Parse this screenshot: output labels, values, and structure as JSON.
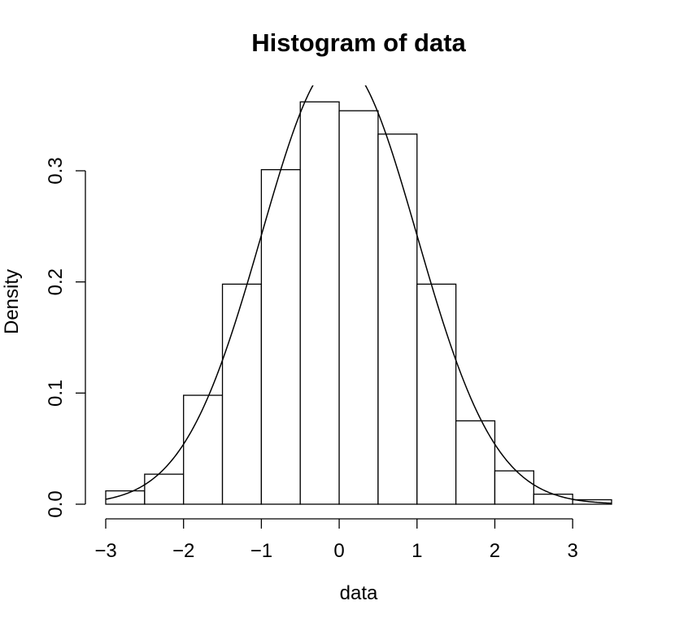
{
  "chart_data": {
    "type": "bar",
    "title": "Histogram of data",
    "xlabel": "data",
    "ylabel": "Density",
    "bins": [
      {
        "from": -3.0,
        "to": -2.5,
        "density": 0.012
      },
      {
        "from": -2.5,
        "to": -2.0,
        "density": 0.027
      },
      {
        "from": -2.0,
        "to": -1.5,
        "density": 0.098
      },
      {
        "from": -1.5,
        "to": -1.0,
        "density": 0.198
      },
      {
        "from": -1.0,
        "to": -0.5,
        "density": 0.301
      },
      {
        "from": -0.5,
        "to": 0.0,
        "density": 0.362
      },
      {
        "from": 0.0,
        "to": 0.5,
        "density": 0.354
      },
      {
        "from": 0.5,
        "to": 1.0,
        "density": 0.333
      },
      {
        "from": 1.0,
        "to": 1.5,
        "density": 0.198
      },
      {
        "from": 1.5,
        "to": 2.0,
        "density": 0.075
      },
      {
        "from": 2.0,
        "to": 2.5,
        "density": 0.03
      },
      {
        "from": 2.5,
        "to": 3.0,
        "density": 0.009
      },
      {
        "from": 3.0,
        "to": 3.5,
        "density": 0.004
      }
    ],
    "curve": {
      "type": "normal density",
      "mean": 0,
      "sd": 1
    },
    "xlim": [
      -3.0,
      3.5
    ],
    "ylim": [
      0,
      0.38
    ],
    "xticks": [
      -3,
      -2,
      -1,
      0,
      1,
      2,
      3
    ],
    "xtick_labels": [
      "−3",
      "−2",
      "−1",
      "0",
      "1",
      "2",
      "3"
    ],
    "yticks": [
      0.0,
      0.1,
      0.2,
      0.3
    ],
    "ytick_labels": [
      "0.0",
      "0.1",
      "0.2",
      "0.3"
    ],
    "grid": false,
    "legend": "none",
    "colors": {
      "bar_fill": "#ffffff",
      "stroke": "#000000"
    }
  }
}
